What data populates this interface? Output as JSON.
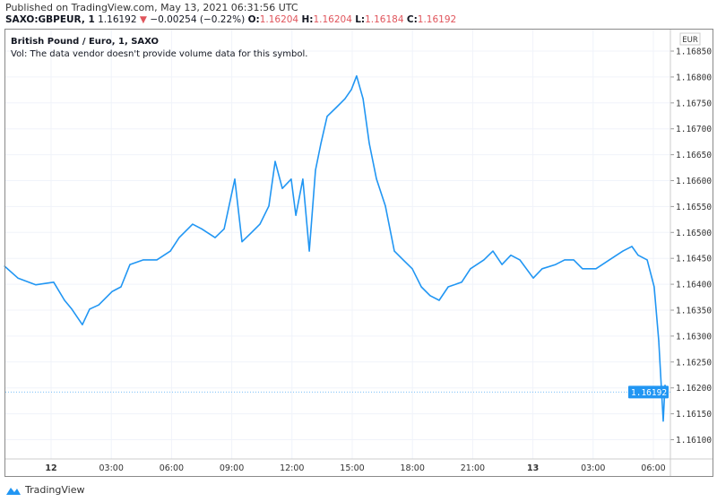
{
  "header": {
    "published": "Published on TradingView.com, May 13, 2021 06:31:56 UTC",
    "symbol": "SAXO:GBPEUR, 1",
    "last": "1.16192",
    "change": "−0.00254 (−0.22%)",
    "o_label": "O:",
    "o": "1.16204",
    "h_label": "H:",
    "h": "1.16204",
    "l_label": "L:",
    "l": "1.16184",
    "c_label": "C:",
    "c": "1.16192"
  },
  "legend": {
    "title": "British Pound / Euro, 1, SAXO",
    "vol": "Vol: The data vendor doesn't provide volume data for this symbol."
  },
  "footer": {
    "brand": "TradingView"
  },
  "colors": {
    "line": "#2196f3",
    "down": "#e0555c",
    "grid": "#f0f3fa"
  },
  "chart_data": {
    "type": "line",
    "title": "British Pound / Euro, 1, SAXO",
    "currency": "EUR",
    "x_unit": "hours since May 12 00:00 UTC",
    "xlim": [
      -2.32,
      32.8
    ],
    "ylim": [
      1.16071,
      1.16893
    ],
    "x_ticks": [
      {
        "h": 0,
        "label": "12",
        "bold": true
      },
      {
        "h": 3,
        "label": "03:00"
      },
      {
        "h": 6,
        "label": "06:00"
      },
      {
        "h": 9,
        "label": "09:00"
      },
      {
        "h": 12,
        "label": "12:00"
      },
      {
        "h": 15,
        "label": "15:00"
      },
      {
        "h": 18,
        "label": "18:00"
      },
      {
        "h": 21,
        "label": "21:00"
      },
      {
        "h": 24,
        "label": "13",
        "bold": true
      },
      {
        "h": 27,
        "label": "03:00"
      },
      {
        "h": 30,
        "label": "06:00"
      }
    ],
    "y_ticks": [
      "1.16850",
      "1.16800",
      "1.16750",
      "1.16700",
      "1.16650",
      "1.16600",
      "1.16550",
      "1.16500",
      "1.16450",
      "1.16400",
      "1.16350",
      "1.16300",
      "1.16250",
      "1.16200",
      "1.16150",
      "1.16100"
    ],
    "last_price": "1.16192",
    "x": [
      -2.32,
      -1.65,
      -0.76,
      0.13,
      0.67,
      1.03,
      1.56,
      1.92,
      2.37,
      3.04,
      3.48,
      3.93,
      4.6,
      5.27,
      5.94,
      6.38,
      7.05,
      7.5,
      8.17,
      8.62,
      9.15,
      9.51,
      9.96,
      10.4,
      10.85,
      11.16,
      11.52,
      11.96,
      12.19,
      12.54,
      12.86,
      13.17,
      13.44,
      13.75,
      14.2,
      14.64,
      14.96,
      15.22,
      15.54,
      15.85,
      16.21,
      16.65,
      17.1,
      17.54,
      17.99,
      18.44,
      18.88,
      19.33,
      19.78,
      20.45,
      20.89,
      21.56,
      22.01,
      22.46,
      22.9,
      23.35,
      24.02,
      24.46,
      25.13,
      25.58,
      26.03,
      26.47,
      27.14,
      27.81,
      28.48,
      28.93,
      29.24,
      29.69,
      30.04,
      30.27,
      30.49,
      30.58,
      30.67
    ],
    "y": [
      1.16435,
      1.16412,
      1.16399,
      1.16404,
      1.16369,
      1.16352,
      1.16322,
      1.16352,
      1.1636,
      1.16386,
      1.16395,
      1.16438,
      1.16447,
      1.16447,
      1.16464,
      1.1649,
      1.16516,
      1.16507,
      1.1649,
      1.16507,
      1.16603,
      1.16482,
      1.16499,
      1.16516,
      1.16551,
      1.16637,
      1.16585,
      1.16603,
      1.16533,
      1.16603,
      1.16464,
      1.1662,
      1.16672,
      1.16724,
      1.16741,
      1.16758,
      1.16776,
      1.16802,
      1.16758,
      1.16672,
      1.16603,
      1.16551,
      1.16464,
      1.16447,
      1.1643,
      1.16395,
      1.16378,
      1.16369,
      1.16395,
      1.16404,
      1.1643,
      1.16447,
      1.16464,
      1.16438,
      1.16456,
      1.16447,
      1.16412,
      1.1643,
      1.16438,
      1.16447,
      1.16447,
      1.1643,
      1.1643,
      1.16447,
      1.16464,
      1.16473,
      1.16456,
      1.16447,
      1.16395,
      1.16291,
      1.16136,
      1.16205,
      1.16192
    ]
  }
}
